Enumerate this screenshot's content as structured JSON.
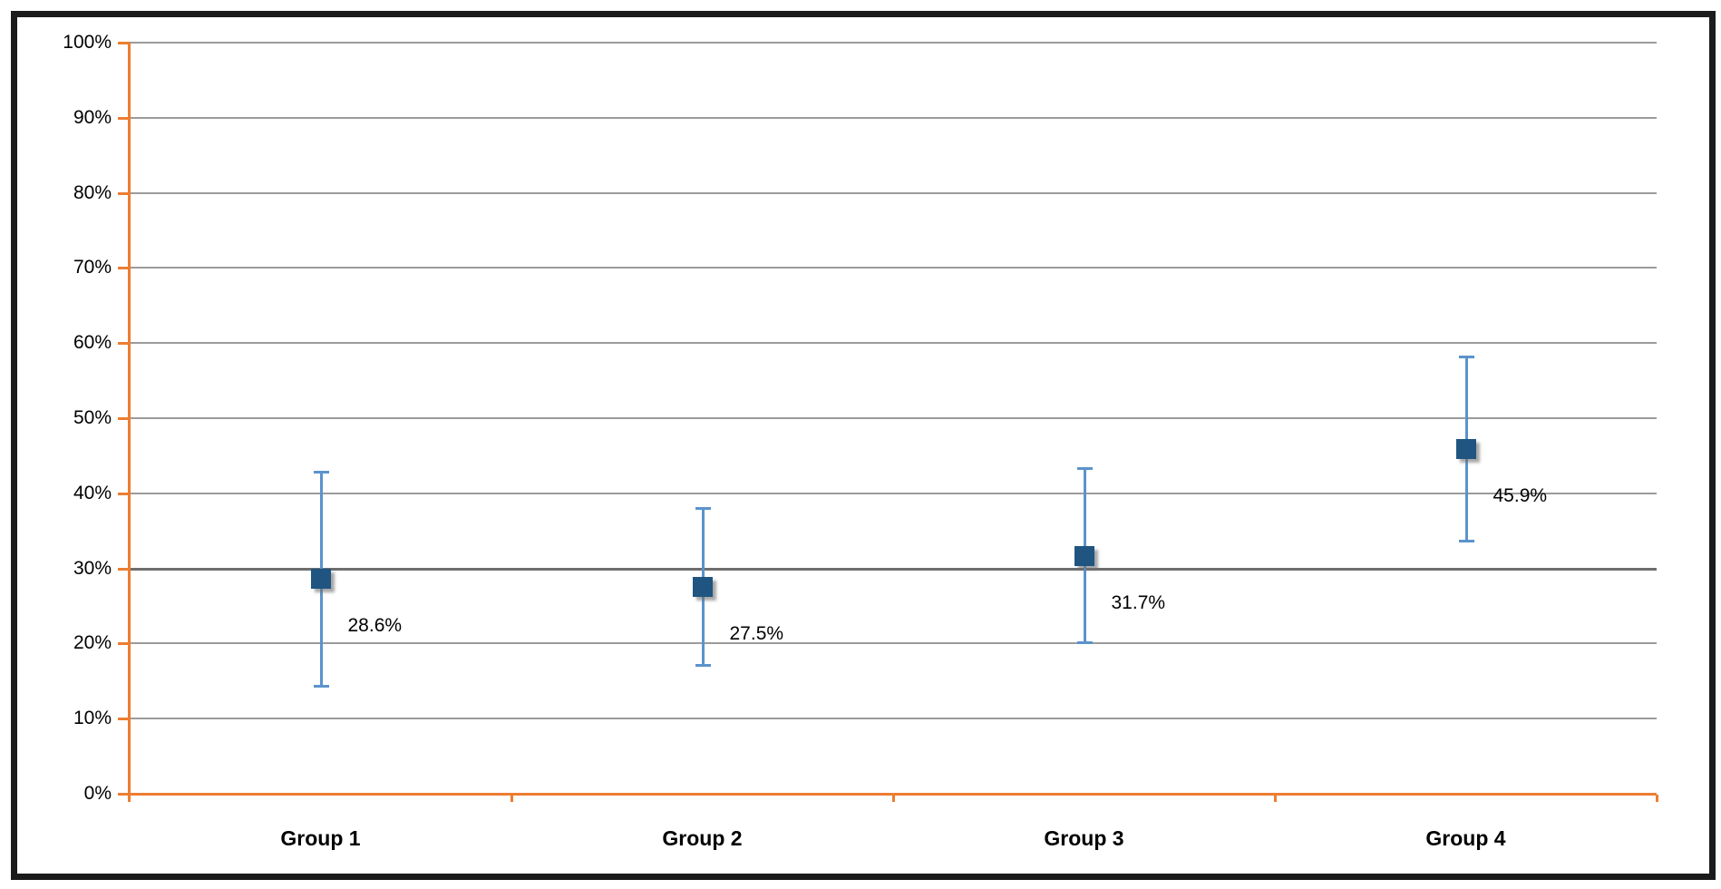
{
  "chart_data": {
    "type": "scatter",
    "title": "",
    "xlabel": "",
    "ylabel": "",
    "categories": [
      "Group 1",
      "Group 2",
      "Group 3",
      "Group 4"
    ],
    "values": [
      28.6,
      27.5,
      31.7,
      45.9
    ],
    "value_labels": [
      "28.6%",
      "27.5%",
      "31.7%",
      "45.9%"
    ],
    "error_bars": {
      "lower": [
        14.3,
        17.0,
        20.1,
        33.6
      ],
      "upper": [
        42.9,
        38.0,
        43.3,
        58.2
      ]
    },
    "ylim": [
      0,
      100
    ],
    "ytick_step": 10,
    "ytick_labels": [
      "0%",
      "10%",
      "20%",
      "30%",
      "40%",
      "50%",
      "60%",
      "70%",
      "80%",
      "90%",
      "100%"
    ],
    "grid": true,
    "emphasized_gridline_value": 30,
    "legend": "none",
    "colors": {
      "marker": "#1F5580",
      "error_bar": "#5B93CC",
      "axis": "#ED7D31",
      "gridline": "#9B9B9B",
      "gridline_emphasized": "#6E6E6E",
      "text": "#000000",
      "frame_border": "#1B1B1B",
      "background": "#FFFFFF"
    }
  }
}
